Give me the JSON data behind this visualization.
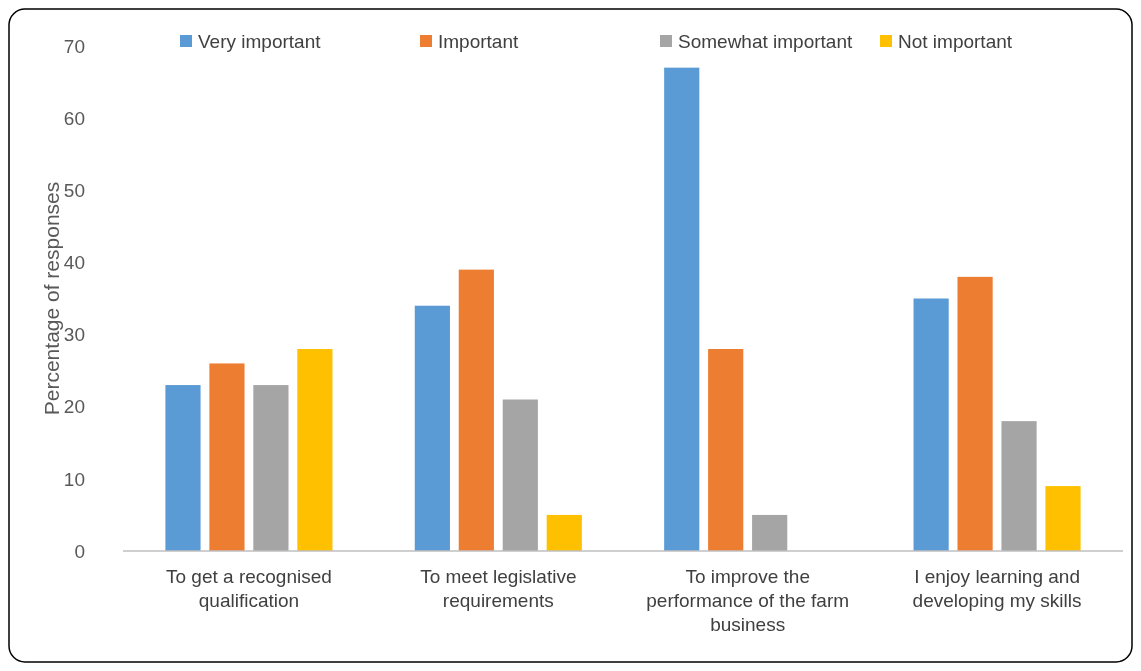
{
  "chart_data": {
    "type": "bar",
    "ylabel": "Percentage of responses",
    "categories": [
      "To get a recognised qualification",
      "To meet legislative requirements",
      "To improve the performance of the farm business",
      "I enjoy learning and developing my skills"
    ],
    "series": [
      {
        "name": "Very important",
        "color": "#5b9bd5",
        "values": [
          23,
          34,
          67,
          35
        ]
      },
      {
        "name": "Important",
        "color": "#ed7d31",
        "values": [
          26,
          39,
          28,
          38
        ]
      },
      {
        "name": "Somewhat important",
        "color": "#a5a5a5",
        "values": [
          23,
          21,
          5,
          18
        ]
      },
      {
        "name": "Not important",
        "color": "#ffc000",
        "values": [
          28,
          5,
          0,
          9
        ]
      }
    ],
    "ylim": [
      0,
      70
    ],
    "yticks": [
      0,
      10,
      20,
      30,
      40,
      50,
      60,
      70
    ],
    "grid": false,
    "legend": "top"
  }
}
